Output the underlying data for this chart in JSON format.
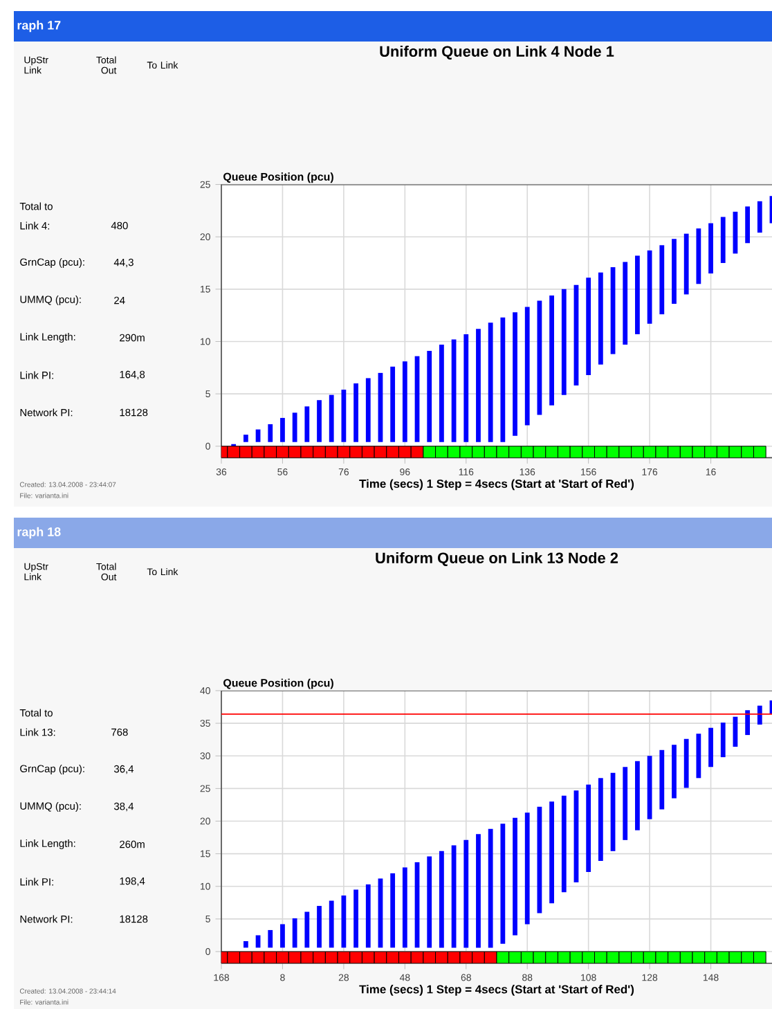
{
  "chart_data": [
    {
      "type": "bar",
      "title": "Uniform Queue on Link 4 Node 1",
      "ylabel": "Queue Position (pcu)",
      "xlabel": "Time (secs)     1 Step = 4secs     (Start at 'Start of Red')",
      "categories": [
        "36",
        null,
        null,
        null,
        null,
        "56",
        null,
        null,
        null,
        null,
        "76",
        null,
        null,
        null,
        null,
        "96",
        null,
        null,
        null,
        null,
        "116",
        null,
        null,
        null,
        null,
        "136",
        null,
        null,
        null,
        null,
        "156",
        null,
        null,
        null,
        null,
        "176",
        null,
        null,
        null,
        null,
        "16",
        null,
        null,
        null,
        null,
        null
      ],
      "series": [
        {
          "color": "#0000ff",
          "base": [
            null,
            0,
            0.4,
            0.4,
            0.4,
            0.4,
            0.4,
            0.4,
            0.4,
            0.4,
            0.4,
            0.4,
            0.4,
            0.4,
            0.4,
            0.4,
            0.4,
            0.4,
            0.4,
            0.4,
            0.4,
            0.4,
            0.4,
            0.4,
            1.0,
            2.0,
            3.0,
            3.9,
            4.9,
            5.8,
            6.8,
            7.8,
            8.8,
            9.7,
            10.7,
            11.7,
            12.6,
            13.6,
            14.5,
            15.5,
            16.5,
            17.5,
            18.4,
            19.4,
            20.4,
            21.3
          ],
          "values": [
            null,
            0.2,
            0.7,
            1.2,
            1.7,
            2.3,
            2.8,
            3.4,
            4.0,
            4.5,
            5.0,
            5.6,
            6.1,
            6.6,
            7.2,
            7.7,
            8.2,
            8.7,
            9.3,
            9.8,
            10.3,
            10.8,
            11.4,
            11.9,
            11.8,
            11.3,
            10.9,
            10.5,
            10.1,
            9.6,
            9.3,
            8.8,
            8.3,
            7.9,
            7.5,
            7.0,
            6.6,
            6.2,
            5.8,
            5.3,
            4.8,
            4.4,
            4.0,
            3.5,
            3.0,
            2.6
          ]
        },
        {
          "base": [
            -1.1,
            -1.1,
            -1.1,
            -1.1,
            -1.1,
            -1.1,
            -1.1,
            -1.1,
            -1.1,
            -1.1,
            -1.1,
            -1.1,
            -1.1,
            -1.1,
            -1.1,
            -1.1,
            -1.1,
            -1.1,
            -1.1,
            -1.1,
            -1.1,
            -1.1,
            -1.1,
            -1.1,
            -1.1,
            -1.1,
            -1.1,
            -1.1,
            -1.1,
            -1.1,
            -1.1,
            -1.1,
            -1.1,
            -1.1,
            -1.1,
            -1.1,
            -1.1,
            -1.1,
            -1.1,
            -1.1,
            -1.1,
            -1.1,
            -1.1,
            -1.1,
            -1.1,
            null
          ],
          "values": [
            1.1,
            1.1,
            1.1,
            1.1,
            1.1,
            1.1,
            1.1,
            1.1,
            1.1,
            1.1,
            1.1,
            1.1,
            1.1,
            1.1,
            1.1,
            1.1,
            1.1,
            1.1,
            1.1,
            1.1,
            1.1,
            1.1,
            1.1,
            1.1,
            1.1,
            1.1,
            1.1,
            1.1,
            1.1,
            1.1,
            1.1,
            1.1,
            1.1,
            1.1,
            1.1,
            1.1,
            1.1,
            1.1,
            1.1,
            1.1,
            1.1,
            1.1,
            1.1,
            1.1,
            1.1,
            null
          ],
          "colors": [
            "#ff0000",
            "#ff0000",
            "#ff0000",
            "#ff0000",
            "#ff0000",
            "#ff0000",
            "#ff0000",
            "#ff0000",
            "#ff0000",
            "#ff0000",
            "#ff0000",
            "#ff0000",
            "#ff0000",
            "#ff0000",
            "#ff0000",
            "#ff0000",
            "#ff0000",
            "#00ff00",
            "#00ff00",
            "#00ff00",
            "#00ff00",
            "#00ff00",
            "#00ff00",
            "#00ff00",
            "#00ff00",
            "#00ff00",
            "#00ff00",
            "#00ff00",
            "#00ff00",
            "#00ff00",
            "#00ff00",
            "#00ff00",
            "#00ff00",
            "#00ff00",
            "#00ff00",
            "#00ff00",
            "#00ff00",
            "#00ff00",
            "#00ff00",
            "#00ff00",
            "#00ff00",
            "#00ff00",
            "#00ff00",
            "#00ff00",
            "#00ff00",
            null
          ]
        }
      ],
      "ylim": [
        -1.1,
        25
      ],
      "yticks": [
        0,
        5,
        10,
        15,
        20,
        25
      ],
      "grid": true,
      "annotations": [
        "raph 17",
        "UpStr Link",
        "Total Out",
        "To Link",
        "Total to",
        "Link 4:",
        "480",
        "GrnCap (pcu):",
        "44,3",
        "UMMQ (pcu):",
        "24",
        "Link Length:",
        "290m",
        "Link PI:",
        "164,8",
        "Network PI:",
        "18128",
        "Created: 13.04.2008 - 23:44:07",
        "File: varianta.ini"
      ]
    },
    {
      "type": "bar",
      "title": "Uniform Queue on Link 13 Node 2",
      "ylabel": "Queue Position (pcu)",
      "xlabel": "Time (secs)     1 Step = 4secs     (Start at 'Start of Red')",
      "categories": [
        "168",
        null,
        null,
        null,
        null,
        "8",
        null,
        null,
        null,
        null,
        "28",
        null,
        null,
        null,
        null,
        "48",
        null,
        null,
        null,
        null,
        "68",
        null,
        null,
        null,
        null,
        "88",
        null,
        null,
        null,
        null,
        "108",
        null,
        null,
        null,
        null,
        "128",
        null,
        null,
        null,
        null,
        "148",
        null,
        null,
        null,
        null,
        null
      ],
      "series": [
        {
          "color": "#0000ff",
          "base": [
            null,
            null,
            0.6,
            0.6,
            0.6,
            0.6,
            0.6,
            0.6,
            0.6,
            0.6,
            0.6,
            0.6,
            0.6,
            0.6,
            0.6,
            0.6,
            0.6,
            0.6,
            0.6,
            0.6,
            0.6,
            0.6,
            0.6,
            1.2,
            2.5,
            4.2,
            5.9,
            7.4,
            9.1,
            10.6,
            12.2,
            13.9,
            15.4,
            17.1,
            18.6,
            20.3,
            21.8,
            23.5,
            25.1,
            26.6,
            28.3,
            29.8,
            31.4,
            33.2,
            34.8,
            36.4
          ],
          "values": [
            null,
            null,
            1.0,
            1.9,
            2.7,
            3.6,
            4.5,
            5.5,
            6.4,
            7.2,
            8.0,
            8.9,
            9.7,
            10.6,
            11.4,
            12.3,
            13.1,
            14.0,
            14.8,
            15.7,
            16.5,
            17.4,
            18.2,
            18.4,
            18.0,
            17.1,
            16.3,
            15.6,
            14.8,
            14.1,
            13.4,
            12.7,
            12.0,
            11.2,
            10.6,
            9.7,
            9.1,
            8.2,
            7.5,
            6.8,
            6.0,
            5.3,
            4.6,
            3.8,
            2.9,
            2.1
          ]
        },
        {
          "base": [
            -1.8,
            -1.8,
            -1.8,
            -1.8,
            -1.8,
            -1.8,
            -1.8,
            -1.8,
            -1.8,
            -1.8,
            -1.8,
            -1.8,
            -1.8,
            -1.8,
            -1.8,
            -1.8,
            -1.8,
            -1.8,
            -1.8,
            -1.8,
            -1.8,
            -1.8,
            -1.8,
            -1.8,
            -1.8,
            -1.8,
            -1.8,
            -1.8,
            -1.8,
            -1.8,
            -1.8,
            -1.8,
            -1.8,
            -1.8,
            -1.8,
            -1.8,
            -1.8,
            -1.8,
            -1.8,
            -1.8,
            -1.8,
            -1.8,
            -1.8,
            -1.8,
            -1.8,
            null
          ],
          "values": [
            1.8,
            1.8,
            1.8,
            1.8,
            1.8,
            1.8,
            1.8,
            1.8,
            1.8,
            1.8,
            1.8,
            1.8,
            1.8,
            1.8,
            1.8,
            1.8,
            1.8,
            1.8,
            1.8,
            1.8,
            1.8,
            1.8,
            1.8,
            1.8,
            1.8,
            1.8,
            1.8,
            1.8,
            1.8,
            1.8,
            1.8,
            1.8,
            1.8,
            1.8,
            1.8,
            1.8,
            1.8,
            1.8,
            1.8,
            1.8,
            1.8,
            1.8,
            1.8,
            1.8,
            1.8,
            null
          ],
          "colors": [
            "#ff0000",
            "#ff0000",
            "#ff0000",
            "#ff0000",
            "#ff0000",
            "#ff0000",
            "#ff0000",
            "#ff0000",
            "#ff0000",
            "#ff0000",
            "#ff0000",
            "#ff0000",
            "#ff0000",
            "#ff0000",
            "#ff0000",
            "#ff0000",
            "#ff0000",
            "#ff0000",
            "#ff0000",
            "#ff0000",
            "#ff0000",
            "#ff0000",
            "#ff0000",
            "#00ff00",
            "#00ff00",
            "#00ff00",
            "#00ff00",
            "#00ff00",
            "#00ff00",
            "#00ff00",
            "#00ff00",
            "#00ff00",
            "#00ff00",
            "#00ff00",
            "#00ff00",
            "#00ff00",
            "#00ff00",
            "#00ff00",
            "#00ff00",
            "#00ff00",
            "#00ff00",
            "#00ff00",
            "#00ff00",
            "#00ff00",
            "#00ff00",
            null
          ]
        }
      ],
      "ylim": [
        -1.8,
        40
      ],
      "yticks": [
        0,
        5,
        10,
        15,
        20,
        25,
        30,
        35,
        40
      ],
      "grid": true,
      "ref_lines": [
        {
          "axis": "y",
          "value": 36.4,
          "color": "#ff0000"
        }
      ],
      "annotations": [
        "raph 18",
        "UpStr Link",
        "Total Out",
        "To Link",
        "Total to",
        "Link 13:",
        "768",
        "GrnCap (pcu):",
        "36,4",
        "UMMQ (pcu):",
        "38,4",
        "Link Length:",
        "260m",
        "Link PI:",
        "198,4",
        "Network PI:",
        "18128",
        "Created: 13.04.2008 - 23:44:14",
        "File: varianta.ini"
      ]
    }
  ]
}
